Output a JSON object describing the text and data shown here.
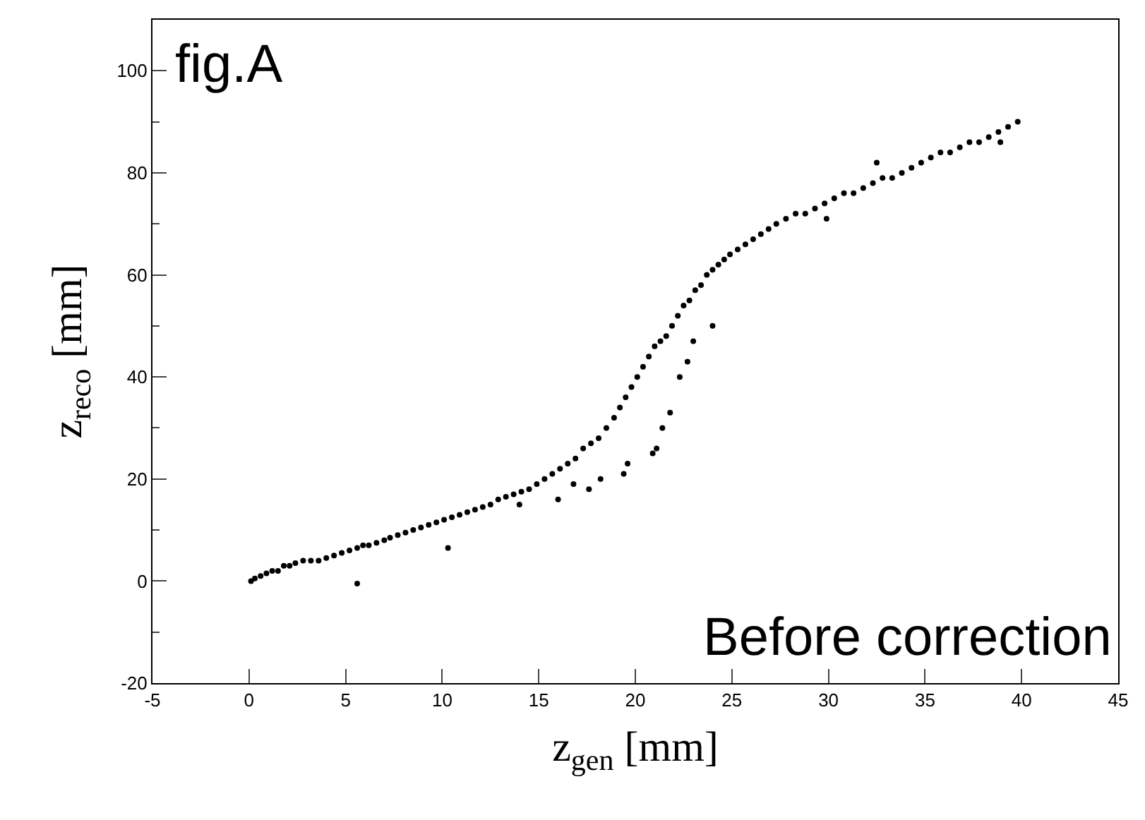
{
  "chart_data": {
    "type": "scatter",
    "xlabel": "z$_{gen}$ [mm]",
    "ylabel": "z$_{reco}$ [mm]",
    "annotations": [
      "fig.A",
      "Before correction"
    ],
    "xlim": [
      -5,
      45
    ],
    "xticks": [
      -5,
      0,
      5,
      10,
      15,
      20,
      25,
      30,
      35,
      40,
      45
    ],
    "ylim": [
      -20,
      110
    ],
    "yticks": [
      -20,
      0,
      20,
      40,
      60,
      80,
      100
    ],
    "marker": "circle",
    "series": [
      {
        "color": "#000000",
        "x": [
          0.1,
          0.3,
          0.6,
          0.9,
          1.2,
          1.5,
          1.8,
          2.1,
          2.4,
          2.8,
          3.2,
          3.6,
          4.0,
          4.4,
          4.8,
          5.2,
          5.6,
          5.9,
          6.2,
          6.6,
          7.0,
          7.3,
          7.7,
          8.1,
          8.5,
          8.9,
          9.3,
          9.7,
          10.1,
          10.5,
          10.9,
          11.3,
          11.7,
          12.1,
          12.5,
          12.9,
          13.3,
          13.7,
          14.1,
          14.5,
          14.9,
          15.3,
          15.7,
          16.1,
          16.5,
          16.9,
          17.3,
          17.7,
          18.1,
          18.5,
          18.9,
          19.2,
          19.5,
          19.8,
          20.1,
          20.4,
          20.7,
          21.0,
          21.3,
          21.6,
          21.9,
          22.2,
          22.5,
          22.8,
          23.1,
          23.4,
          23.7,
          24.0,
          24.3,
          24.6,
          24.9,
          25.3,
          25.7,
          26.1,
          26.5,
          26.9,
          27.3,
          27.8,
          28.3,
          28.8,
          29.3,
          29.8,
          30.3,
          30.8,
          31.3,
          31.8,
          32.3,
          32.8,
          33.3,
          33.8,
          34.3,
          34.8,
          35.3,
          35.8,
          36.3,
          36.8,
          37.3,
          37.8,
          38.3,
          38.8,
          39.3,
          39.8,
          5.6,
          10.3,
          14.0,
          16.0,
          16.8,
          17.6,
          18.2,
          19.4,
          19.6,
          20.9,
          21.1,
          21.4,
          21.8,
          22.3,
          22.7,
          23.0,
          24.0,
          29.9,
          32.5,
          38.9
        ],
        "values": [
          0,
          0.5,
          1,
          1.5,
          2,
          2,
          3,
          3,
          3.5,
          4,
          4,
          4,
          4.5,
          5,
          5.5,
          6,
          6.5,
          7,
          7,
          7.5,
          8,
          8.5,
          9,
          9.5,
          10,
          10.5,
          11,
          11.5,
          12,
          12.5,
          13,
          13.5,
          14,
          14.5,
          15,
          16,
          16.5,
          17,
          17.5,
          18,
          19,
          20,
          21,
          22,
          23,
          24,
          26,
          27,
          28,
          30,
          32,
          34,
          36,
          38,
          40,
          42,
          44,
          46,
          47,
          48,
          50,
          52,
          54,
          55,
          57,
          58,
          60,
          61,
          62,
          63,
          64,
          65,
          66,
          67,
          68,
          69,
          70,
          71,
          72,
          72,
          73,
          74,
          75,
          76,
          76,
          77,
          78,
          79,
          79,
          80,
          81,
          82,
          83,
          84,
          84,
          85,
          86,
          86,
          87,
          88,
          89,
          90,
          -0.5,
          6.5,
          15,
          16,
          19,
          18,
          20,
          21,
          23,
          25,
          26,
          30,
          33,
          40,
          43,
          47,
          50,
          71,
          82,
          86
        ]
      }
    ]
  }
}
